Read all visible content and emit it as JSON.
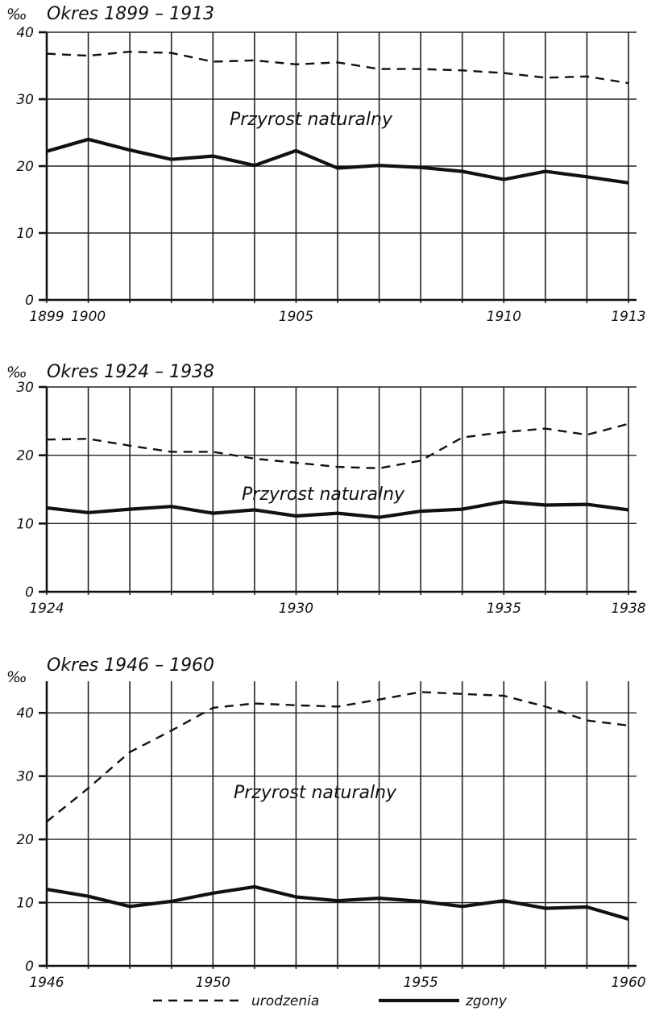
{
  "unit": "‰",
  "chart_data": [
    {
      "type": "line",
      "title": "Okres 1899 – 1913",
      "annotation": "Przyrost naturalny",
      "x": [
        1899,
        1900,
        1901,
        1902,
        1903,
        1904,
        1905,
        1906,
        1907,
        1908,
        1909,
        1910,
        1911,
        1912,
        1913
      ],
      "x_tick_labels": [
        "1899",
        "1900",
        "1905",
        "1910",
        "1913"
      ],
      "y_tick_labels": [
        "0",
        "10",
        "20",
        "30",
        "40"
      ],
      "ylim": [
        0,
        40
      ],
      "grid": true,
      "series": [
        {
          "name": "urodzenia",
          "values": [
            36.8,
            36.5,
            37.1,
            36.9,
            35.6,
            35.8,
            35.2,
            35.5,
            34.5,
            34.5,
            34.3,
            33.9,
            33.2,
            33.4,
            32.4
          ]
        },
        {
          "name": "zgony",
          "values": [
            22.2,
            24.0,
            22.4,
            21.0,
            21.5,
            20.1,
            22.3,
            19.7,
            20.1,
            19.8,
            19.2,
            18.0,
            19.2,
            18.4,
            17.5
          ]
        }
      ]
    },
    {
      "type": "line",
      "title": "Okres 1924 – 1938",
      "annotation": "Przyrost naturalny",
      "x": [
        1924,
        1925,
        1926,
        1927,
        1928,
        1929,
        1930,
        1931,
        1932,
        1933,
        1934,
        1935,
        1936,
        1937,
        1938
      ],
      "x_tick_labels": [
        "1924",
        "1930",
        "1935",
        "1938"
      ],
      "y_tick_labels": [
        "0",
        "10",
        "20",
        "30"
      ],
      "ylim": [
        0,
        30
      ],
      "grid": true,
      "series": [
        {
          "name": "urodzenia",
          "values": [
            22.3,
            22.4,
            21.4,
            20.5,
            20.5,
            19.5,
            18.9,
            18.3,
            18.1,
            19.2,
            22.6,
            23.4,
            23.9,
            23.0,
            24.6
          ]
        },
        {
          "name": "zgony",
          "values": [
            12.3,
            11.6,
            12.1,
            12.5,
            11.5,
            12.0,
            11.1,
            11.5,
            10.9,
            11.8,
            12.1,
            13.2,
            12.7,
            12.8,
            12.0
          ]
        }
      ]
    },
    {
      "type": "line",
      "title": "Okres 1946 – 1960",
      "annotation": "Przyrost naturalny",
      "x": [
        1946,
        1947,
        1948,
        1949,
        1950,
        1951,
        1952,
        1953,
        1954,
        1955,
        1956,
        1957,
        1958,
        1959,
        1960
      ],
      "x_tick_labels": [
        "1946",
        "1950",
        "1955",
        "1960"
      ],
      "y_tick_labels": [
        "0",
        "10",
        "20",
        "30",
        "40"
      ],
      "ylim": [
        0,
        45
      ],
      "grid": true,
      "series": [
        {
          "name": "urodzenia",
          "values": [
            22.8,
            28.1,
            33.8,
            37.2,
            40.8,
            41.5,
            41.2,
            41.0,
            42.1,
            43.3,
            43.0,
            42.7,
            41.0,
            38.8,
            38.0
          ]
        },
        {
          "name": "zgony",
          "values": [
            12.1,
            11.0,
            9.4,
            10.2,
            11.5,
            12.5,
            10.9,
            10.3,
            10.7,
            10.2,
            9.4,
            10.3,
            9.1,
            9.3,
            7.4
          ]
        }
      ]
    }
  ],
  "legend": {
    "births_label": "urodzenia",
    "deaths_label": "zgony"
  }
}
